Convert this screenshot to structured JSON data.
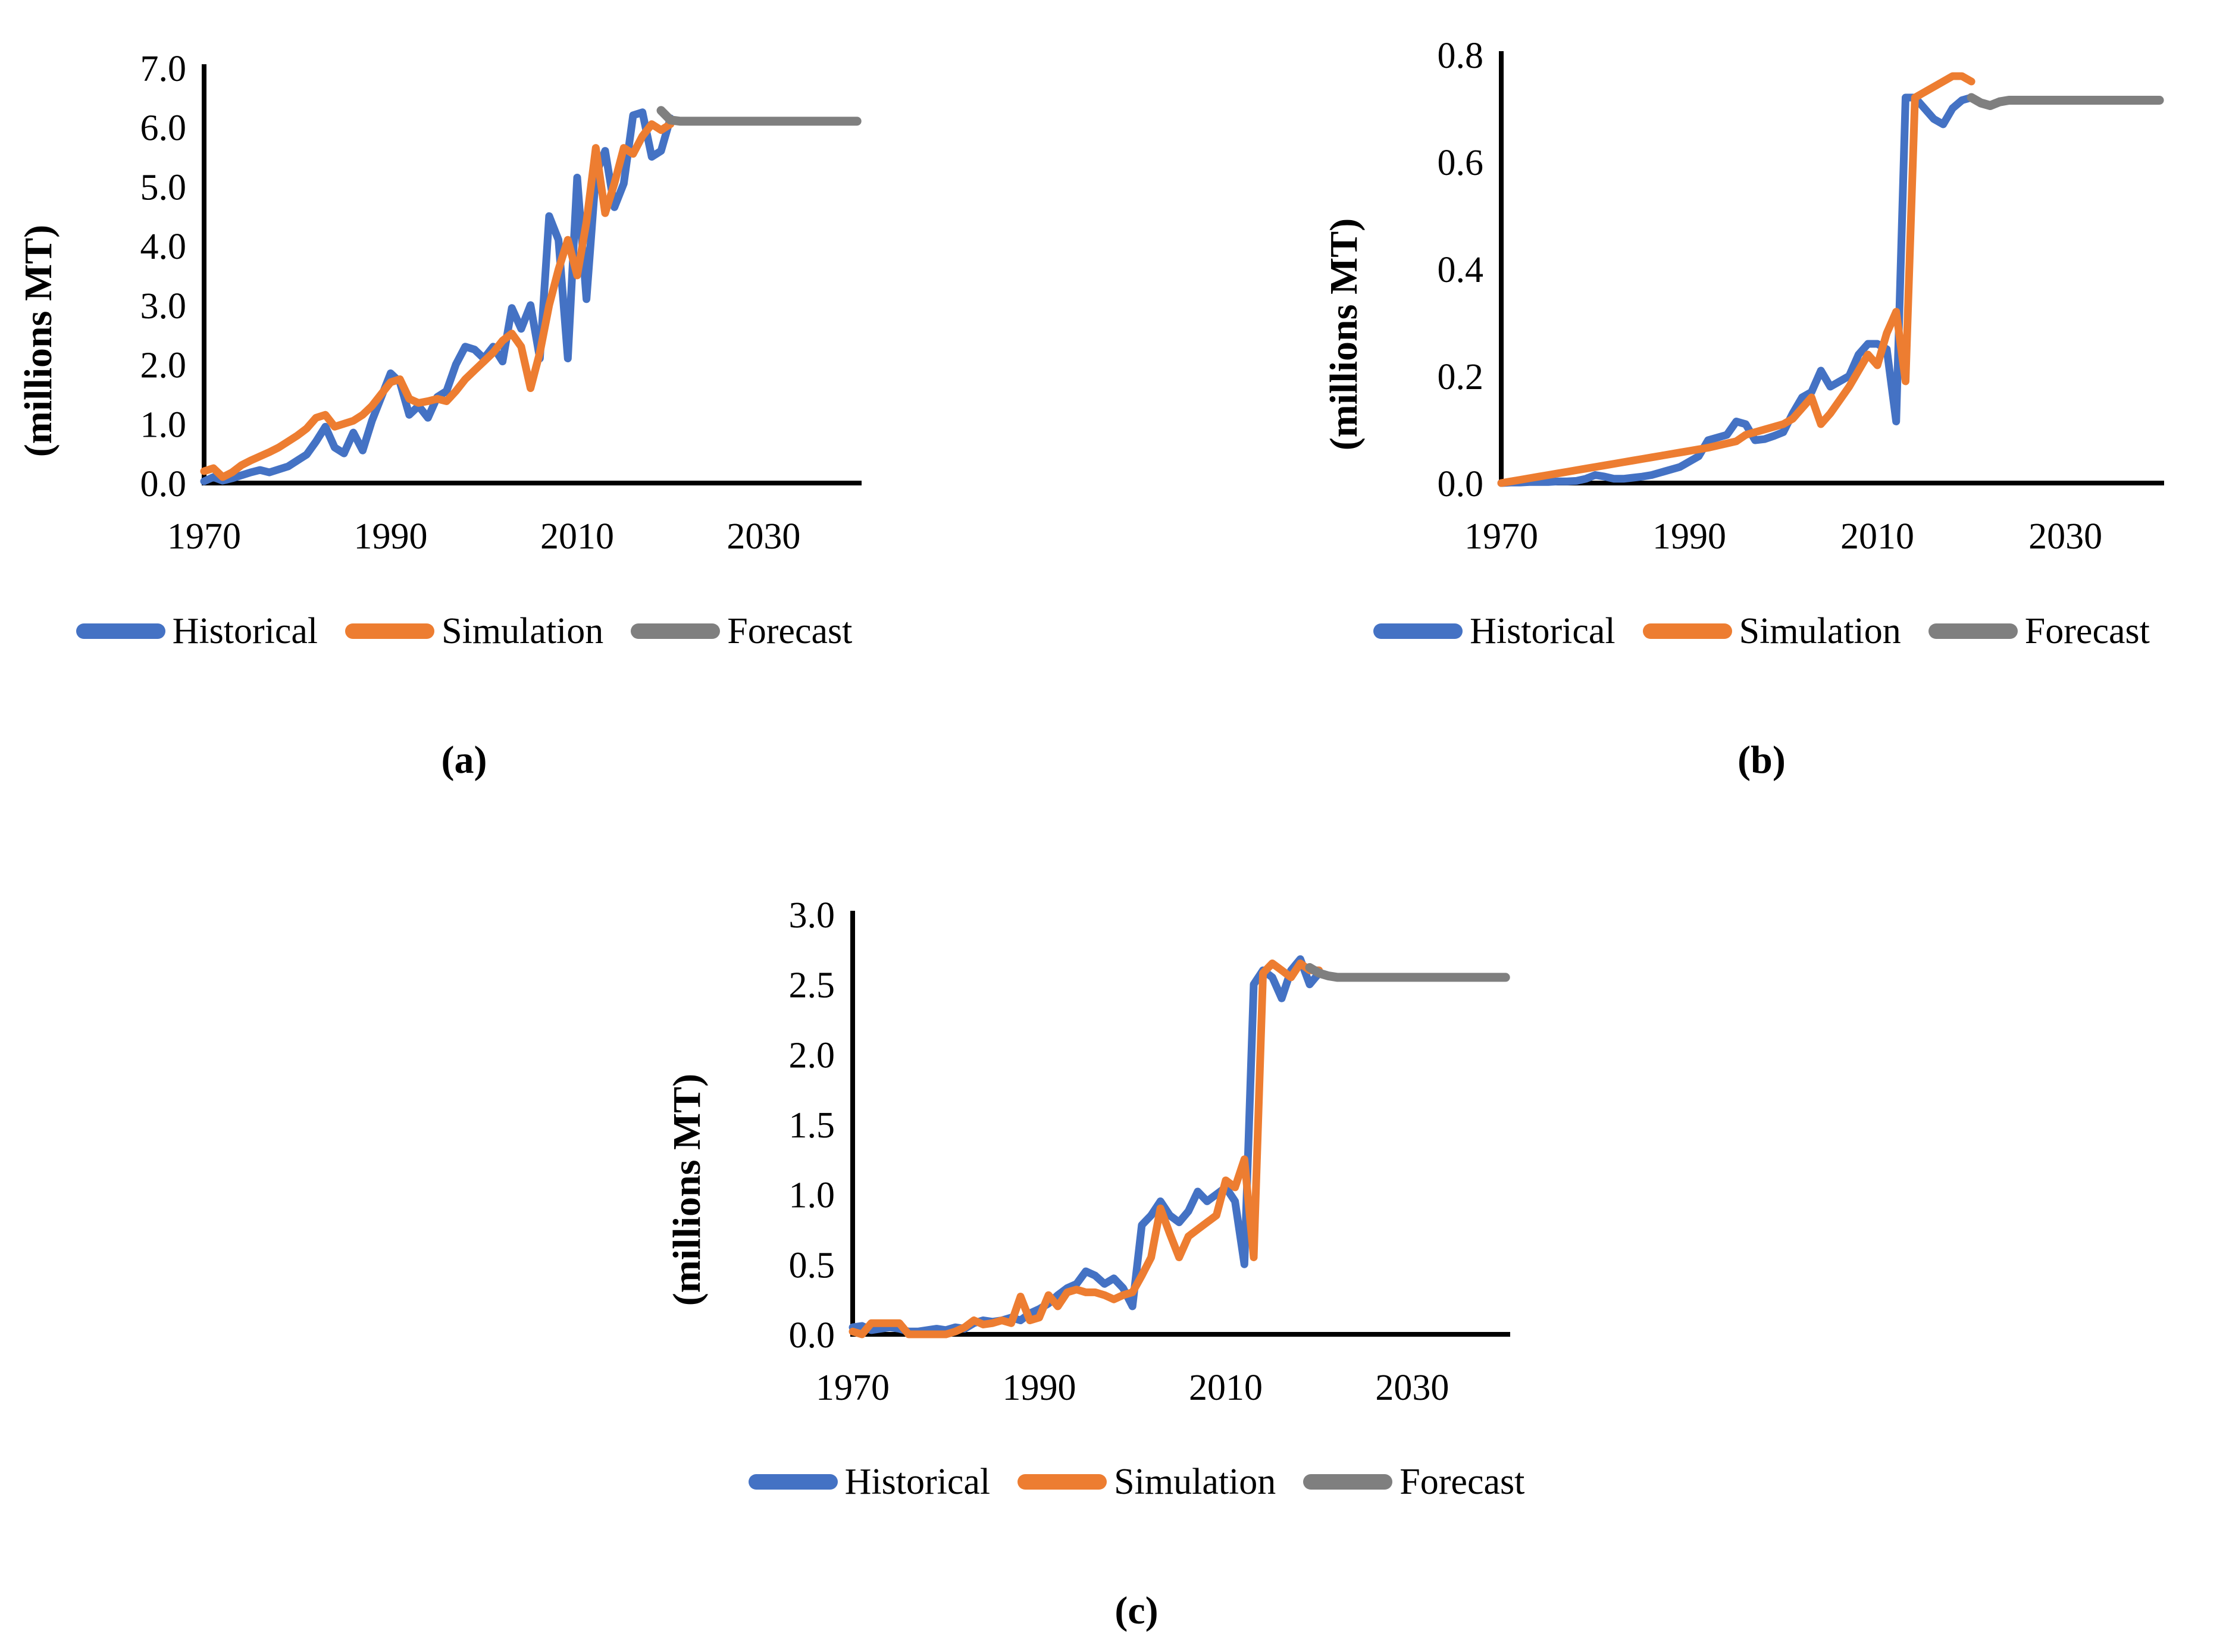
{
  "chart_data": [
    {
      "panel": "a",
      "type": "line",
      "title": "",
      "xlabel": "",
      "ylabel": "(millions MT)",
      "caption": "(a)",
      "xlim": [
        1970,
        2040.5
      ],
      "ylim": [
        0,
        7
      ],
      "x_ticks": [
        1970,
        1990,
        2010,
        2030
      ],
      "x_tick_labels": [
        "1970",
        "1990",
        "2010",
        "2030"
      ],
      "y_ticks": [
        0,
        1,
        2,
        3,
        4,
        5,
        6,
        7
      ],
      "y_tick_labels": [
        "0.0",
        "1.0",
        "2.0",
        "3.0",
        "4.0",
        "5.0",
        "6.0",
        "7.0"
      ],
      "grid": false,
      "legend_position": "bottom",
      "series": [
        {
          "name": "Historical",
          "color": "#4472C4",
          "start_year": 1970,
          "values": [
            0.03,
            0.1,
            0.04,
            0.08,
            0.13,
            0.18,
            0.22,
            0.18,
            0.23,
            0.28,
            0.38,
            0.48,
            0.7,
            0.95,
            0.6,
            0.5,
            0.85,
            0.55,
            1.05,
            1.45,
            1.85,
            1.7,
            1.15,
            1.3,
            1.1,
            1.45,
            1.55,
            2.0,
            2.3,
            2.25,
            2.1,
            2.3,
            2.05,
            2.95,
            2.6,
            3.0,
            2.1,
            4.5,
            4.1,
            2.1,
            5.15,
            3.1,
            5.2,
            5.6,
            4.65,
            5.05,
            6.2,
            6.25,
            5.5,
            5.6,
            6.15
          ]
        },
        {
          "name": "Simulation",
          "color": "#ED7D31",
          "start_year": 1970,
          "values": [
            0.2,
            0.25,
            0.1,
            0.18,
            0.3,
            0.38,
            0.45,
            0.52,
            0.6,
            0.7,
            0.8,
            0.92,
            1.1,
            1.15,
            0.95,
            1.0,
            1.05,
            1.15,
            1.3,
            1.5,
            1.7,
            1.75,
            1.42,
            1.35,
            1.38,
            1.42,
            1.38,
            1.55,
            1.75,
            1.9,
            2.05,
            2.2,
            2.4,
            2.52,
            2.3,
            1.6,
            2.2,
            3.0,
            3.6,
            4.1,
            3.5,
            4.4,
            5.65,
            4.55,
            5.05,
            5.65,
            5.55,
            5.85,
            6.05,
            5.95,
            6.05
          ]
        },
        {
          "name": "Forecast",
          "color": "#7F7F7F",
          "start_year": 2019,
          "values": [
            6.28,
            6.12,
            6.1,
            6.1,
            6.1,
            6.1,
            6.1,
            6.1,
            6.1,
            6.1,
            6.1,
            6.1,
            6.1,
            6.1,
            6.1,
            6.1,
            6.1,
            6.1,
            6.1,
            6.1,
            6.1,
            6.1
          ]
        }
      ]
    },
    {
      "panel": "b",
      "type": "line",
      "title": "",
      "xlabel": "",
      "ylabel": "(millions MT)",
      "caption": "(b)",
      "xlim": [
        1970,
        2040.5
      ],
      "ylim": [
        0,
        0.8
      ],
      "x_ticks": [
        1970,
        1990,
        2010,
        2030
      ],
      "x_tick_labels": [
        "1970",
        "1990",
        "2010",
        "2030"
      ],
      "y_ticks": [
        0,
        0.2,
        0.4,
        0.6,
        0.8
      ],
      "y_tick_labels": [
        "0.0",
        "0.2",
        "0.4",
        "0.6",
        "0.8"
      ],
      "grid": false,
      "legend_position": "bottom",
      "series": [
        {
          "name": "Historical",
          "color": "#4472C4",
          "start_year": 1970,
          "values": [
            0.0,
            0.001,
            0.001,
            0.002,
            0.002,
            0.002,
            0.003,
            0.003,
            0.004,
            0.008,
            0.015,
            0.012,
            0.008,
            0.008,
            0.01,
            0.012,
            0.015,
            0.02,
            0.025,
            0.03,
            0.04,
            0.05,
            0.08,
            0.085,
            0.09,
            0.115,
            0.11,
            0.08,
            0.082,
            0.088,
            0.095,
            0.13,
            0.16,
            0.17,
            0.21,
            0.18,
            0.19,
            0.2,
            0.24,
            0.26,
            0.26,
            0.25,
            0.115,
            0.72,
            0.72,
            0.7,
            0.68,
            0.67,
            0.7,
            0.715,
            0.72
          ]
        },
        {
          "name": "Simulation",
          "color": "#ED7D31",
          "start_year": 1970,
          "values": [
            0.0,
            0.003,
            0.006,
            0.009,
            0.012,
            0.015,
            0.018,
            0.021,
            0.024,
            0.027,
            0.03,
            0.033,
            0.036,
            0.039,
            0.042,
            0.045,
            0.048,
            0.051,
            0.054,
            0.057,
            0.06,
            0.063,
            0.066,
            0.07,
            0.074,
            0.078,
            0.09,
            0.095,
            0.1,
            0.105,
            0.11,
            0.12,
            0.14,
            0.16,
            0.11,
            0.13,
            0.155,
            0.18,
            0.21,
            0.24,
            0.22,
            0.28,
            0.32,
            0.19,
            0.72,
            0.73,
            0.74,
            0.75,
            0.76,
            0.76,
            0.75
          ]
        },
        {
          "name": "Forecast",
          "color": "#7F7F7F",
          "start_year": 2020,
          "values": [
            0.72,
            0.71,
            0.705,
            0.712,
            0.715,
            0.715,
            0.715,
            0.715,
            0.715,
            0.715,
            0.715,
            0.715,
            0.715,
            0.715,
            0.715,
            0.715,
            0.715,
            0.715,
            0.715,
            0.715,
            0.715
          ]
        }
      ]
    },
    {
      "panel": "c",
      "type": "line",
      "title": "",
      "xlabel": "",
      "ylabel": "(millions MT)",
      "caption": "(c)",
      "xlim": [
        1970,
        2040.5
      ],
      "ylim": [
        0,
        3
      ],
      "x_ticks": [
        1970,
        1990,
        2010,
        2030
      ],
      "x_tick_labels": [
        "1970",
        "1990",
        "2010",
        "2030"
      ],
      "y_ticks": [
        0,
        0.5,
        1.0,
        1.5,
        2.0,
        2.5,
        3.0
      ],
      "y_tick_labels": [
        "0.0",
        "0.5",
        "1.0",
        "1.5",
        "2.0",
        "2.5",
        "3.0"
      ],
      "grid": false,
      "legend_position": "bottom",
      "series": [
        {
          "name": "Historical",
          "color": "#4472C4",
          "start_year": 1970,
          "values": [
            0.05,
            0.06,
            0.03,
            0.04,
            0.05,
            0.04,
            0.02,
            0.02,
            0.03,
            0.04,
            0.03,
            0.05,
            0.04,
            0.08,
            0.1,
            0.09,
            0.1,
            0.12,
            0.1,
            0.15,
            0.18,
            0.22,
            0.28,
            0.33,
            0.36,
            0.45,
            0.42,
            0.36,
            0.4,
            0.33,
            0.2,
            0.78,
            0.85,
            0.95,
            0.85,
            0.8,
            0.88,
            1.02,
            0.95,
            1.0,
            1.05,
            0.95,
            0.5,
            2.5,
            2.6,
            2.55,
            2.4,
            2.6,
            2.68,
            2.5,
            2.58
          ]
        },
        {
          "name": "Simulation",
          "color": "#ED7D31",
          "start_year": 1970,
          "values": [
            0.02,
            0.0,
            0.08,
            0.08,
            0.08,
            0.08,
            0.0,
            0.0,
            0.0,
            0.0,
            0.0,
            0.02,
            0.05,
            0.1,
            0.07,
            0.08,
            0.1,
            0.08,
            0.27,
            0.1,
            0.12,
            0.28,
            0.2,
            0.3,
            0.32,
            0.3,
            0.3,
            0.28,
            0.25,
            0.28,
            0.3,
            0.42,
            0.55,
            0.9,
            0.72,
            0.55,
            0.7,
            0.75,
            0.8,
            0.85,
            1.1,
            1.05,
            1.25,
            0.55,
            2.58,
            2.65,
            2.6,
            2.55,
            2.65,
            2.6,
            2.6
          ]
        },
        {
          "name": "Forecast",
          "color": "#7F7F7F",
          "start_year": 2019,
          "values": [
            2.62,
            2.58,
            2.56,
            2.55,
            2.55,
            2.55,
            2.55,
            2.55,
            2.55,
            2.55,
            2.55,
            2.55,
            2.55,
            2.55,
            2.55,
            2.55,
            2.55,
            2.55,
            2.55,
            2.55,
            2.55,
            2.55
          ]
        }
      ]
    }
  ],
  "styles": {
    "axis_color": "#000000",
    "historical_color": "#4472C4",
    "simulation_color": "#ED7D31",
    "forecast_color": "#7F7F7F"
  }
}
